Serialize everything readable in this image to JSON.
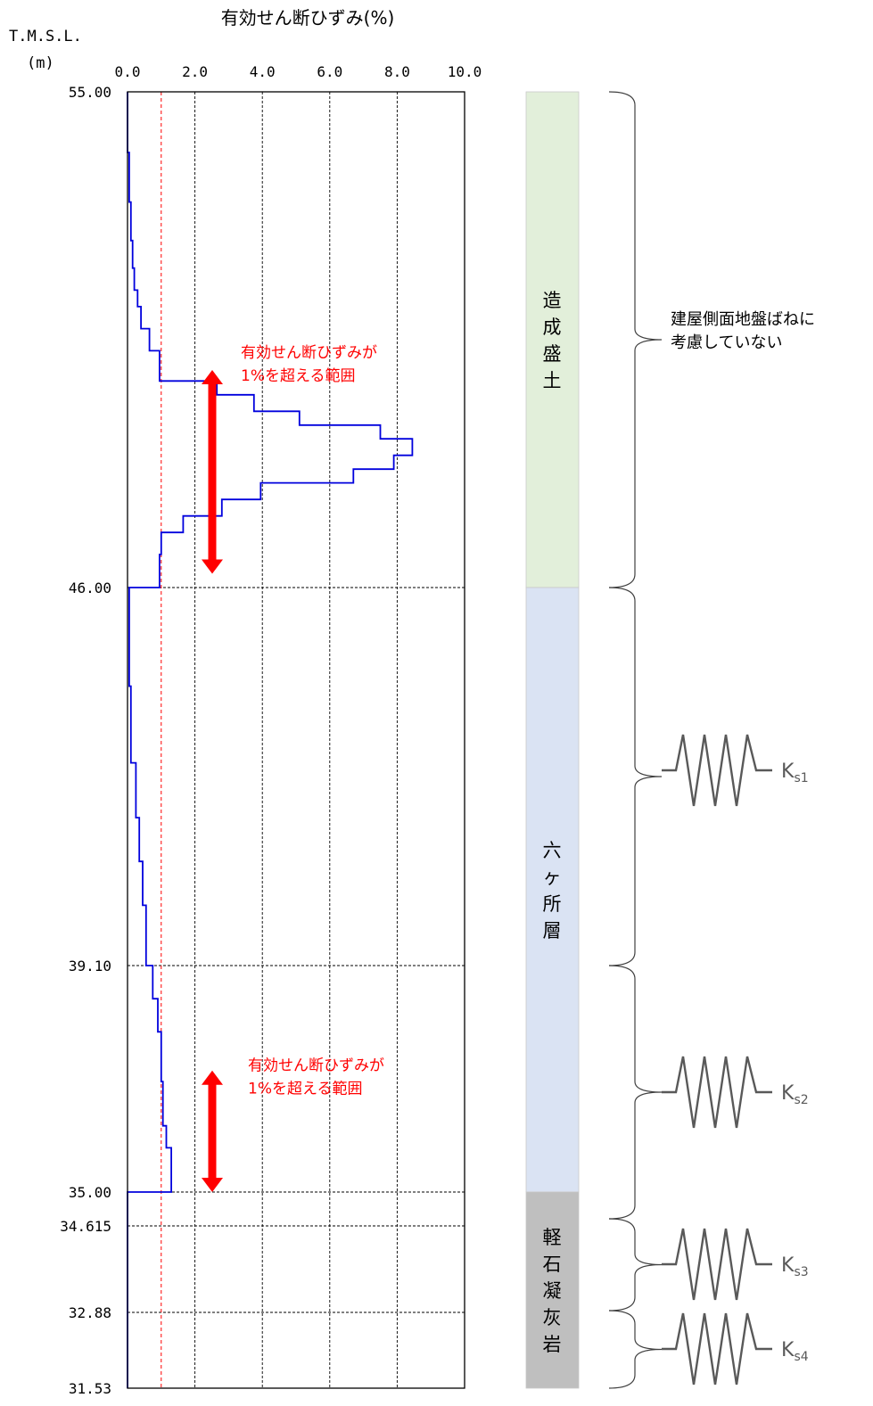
{
  "chart_title": "有効せん断ひずみ(%)",
  "y_axis_label_line1": "T.M.S.L.",
  "y_axis_label_line2": "(m)",
  "chart_data": {
    "type": "line",
    "title": "有効せん断ひずみ(%)",
    "xlabel": "有効せん断ひずみ(%)",
    "ylabel": "T.M.S.L. (m)",
    "xlim": [
      0,
      10
    ],
    "ylim": [
      31.53,
      55.0
    ],
    "x_ticks": [
      "0.0",
      "2.0",
      "4.0",
      "6.0",
      "8.0",
      "10.0"
    ],
    "y_ticks": [
      "55.00",
      "46.00",
      "39.10",
      "35.00",
      "34.615",
      "32.88",
      "31.53"
    ],
    "y_tick_values": [
      55.0,
      46.0,
      39.1,
      35.0,
      34.615,
      32.88,
      31.53
    ],
    "reference_line_x": 1.0,
    "grid": true,
    "series": [
      {
        "color": "#0000dd",
        "step_points": [
          [
            0.0,
            55.0
          ],
          [
            0.0,
            53.9
          ],
          [
            0.05,
            53.9
          ],
          [
            0.05,
            53.0
          ],
          [
            0.1,
            53.0
          ],
          [
            0.1,
            52.3
          ],
          [
            0.15,
            52.3
          ],
          [
            0.15,
            51.8
          ],
          [
            0.2,
            51.8
          ],
          [
            0.2,
            51.4
          ],
          [
            0.3,
            51.4
          ],
          [
            0.3,
            51.1
          ],
          [
            0.4,
            51.1
          ],
          [
            0.4,
            50.7
          ],
          [
            0.65,
            50.7
          ],
          [
            0.65,
            50.3
          ],
          [
            0.95,
            50.3
          ],
          [
            0.95,
            49.75
          ],
          [
            2.65,
            49.75
          ],
          [
            2.65,
            49.5
          ],
          [
            3.75,
            49.5
          ],
          [
            3.75,
            49.2
          ],
          [
            5.1,
            49.2
          ],
          [
            5.1,
            48.95
          ],
          [
            7.5,
            48.95
          ],
          [
            7.5,
            48.7
          ],
          [
            8.45,
            48.7
          ],
          [
            8.45,
            48.4
          ],
          [
            7.9,
            48.4
          ],
          [
            7.9,
            48.15
          ],
          [
            6.7,
            48.15
          ],
          [
            6.7,
            47.9
          ],
          [
            3.95,
            47.9
          ],
          [
            3.95,
            47.6
          ],
          [
            2.8,
            47.6
          ],
          [
            2.8,
            47.3
          ],
          [
            1.65,
            47.3
          ],
          [
            1.65,
            47.0
          ],
          [
            1.0,
            47.0
          ],
          [
            1.0,
            46.6
          ],
          [
            0.95,
            46.6
          ],
          [
            0.95,
            46.0
          ],
          [
            0.05,
            46.0
          ],
          [
            0.05,
            44.2
          ],
          [
            0.1,
            44.2
          ],
          [
            0.1,
            42.8
          ],
          [
            0.25,
            42.8
          ],
          [
            0.25,
            41.8
          ],
          [
            0.35,
            41.8
          ],
          [
            0.35,
            41.0
          ],
          [
            0.45,
            41.0
          ],
          [
            0.45,
            40.2
          ],
          [
            0.55,
            40.2
          ],
          [
            0.55,
            39.1
          ],
          [
            0.75,
            39.1
          ],
          [
            0.75,
            38.5
          ],
          [
            0.9,
            38.5
          ],
          [
            0.9,
            37.9
          ],
          [
            1.0,
            37.9
          ],
          [
            1.0,
            37.0
          ],
          [
            1.05,
            37.0
          ],
          [
            1.05,
            36.2
          ],
          [
            1.15,
            36.2
          ],
          [
            1.15,
            35.8
          ],
          [
            1.3,
            35.8
          ],
          [
            1.3,
            35.0
          ],
          [
            0.0,
            35.0
          ],
          [
            0.0,
            31.53
          ]
        ]
      }
    ],
    "annotations": [
      {
        "text_line1": "有効せん断ひずみが",
        "text_line2": "1%を超える範囲",
        "y_top": 49.95,
        "y_bottom": 46.25
      },
      {
        "text_line1": "有効せん断ひずみが",
        "text_line2": "1%を超える範囲",
        "y_top": 37.2,
        "y_bottom": 35.0
      }
    ]
  },
  "strata": [
    {
      "label": "造成盛土",
      "color": "#e2efda",
      "top": 55.0,
      "bottom": 46.0
    },
    {
      "label": "六ヶ所層",
      "color": "#dae3f3",
      "top": 46.0,
      "bottom": 35.0
    },
    {
      "label": "軽石凝灰岩",
      "color": "#bfbfbf",
      "top": 35.0,
      "bottom": 31.53
    }
  ],
  "note_line1": "建屋側面地盤ばねに",
  "note_line2": "考慮していない",
  "springs": [
    {
      "base": "K",
      "sub": "s1"
    },
    {
      "base": "K",
      "sub": "s2"
    },
    {
      "base": "K",
      "sub": "s3"
    },
    {
      "base": "K",
      "sub": "s4"
    }
  ],
  "colors": {
    "series": "#0000dd",
    "annotation": "#ff0000",
    "reference_line": "#ff0000",
    "grid": "#000000",
    "spring": "#595959",
    "brace": "#404040"
  }
}
